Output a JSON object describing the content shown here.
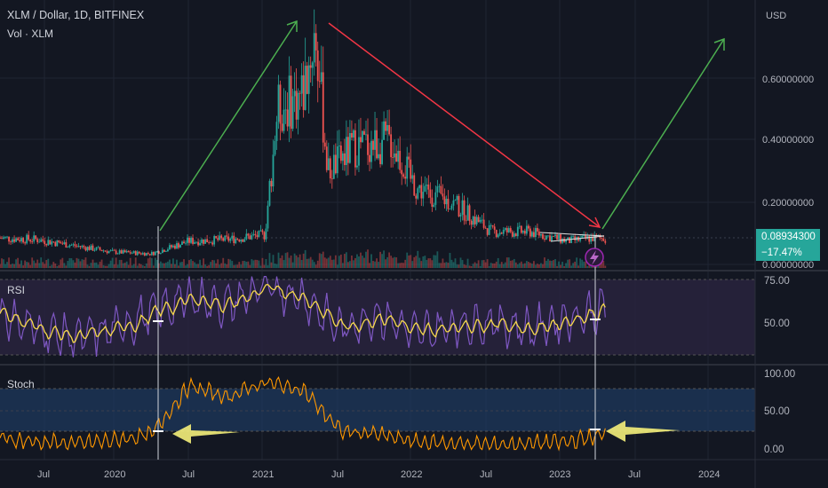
{
  "header": {
    "symbol_line": "XLM / Dollar, 1D, BITFINEX",
    "volume_line": "Vol · XLM"
  },
  "price_axis": {
    "currency": "USD",
    "ticks": [
      "0.60000000",
      "0.40000000",
      "0.20000000",
      "0.00000000"
    ],
    "current_price": "0.08934300",
    "change_pct": "−17.47%"
  },
  "panes": {
    "rsi": {
      "title": "RSI",
      "ticks": [
        "75.00",
        "50.00"
      ]
    },
    "stoch": {
      "title": "Stoch",
      "ticks": [
        "100.00",
        "50.00",
        "0.00"
      ]
    }
  },
  "time_axis": [
    "Jul",
    "2020",
    "Jul",
    "2021",
    "Jul",
    "2022",
    "Jul",
    "2023",
    "Jul",
    "2024"
  ],
  "colors": {
    "background": "#131722",
    "up_candle": "#26a69a",
    "down_candle": "#ef5350",
    "rsi_line": "#7e57c2",
    "rsi_ma": "#f7d94c",
    "stoch_k": "#ff9800",
    "stoch_band": "#1e3a5f",
    "rsi_band": "#2a2440",
    "green_arrow": "#4caf50",
    "red_arrow": "#f23645",
    "yellow_arrow": "#f5f07a"
  },
  "chart_data": [
    {
      "type": "line",
      "title": "XLM / Dollar, 1D, BITFINEX",
      "x": [
        "2019-04",
        "2019-07",
        "2019-10",
        "2020-01",
        "2020-04",
        "2020-07",
        "2020-10",
        "2021-01",
        "2021-02",
        "2021-04",
        "2021-05",
        "2021-06",
        "2021-08",
        "2021-11",
        "2022-01",
        "2022-04",
        "2022-07",
        "2022-10",
        "2023-01",
        "2023-03",
        "2023-04"
      ],
      "series": [
        {
          "values": [
            0.09,
            0.085,
            0.065,
            0.045,
            0.04,
            0.08,
            0.085,
            0.1,
            0.5,
            0.55,
            0.75,
            0.3,
            0.38,
            0.4,
            0.25,
            0.2,
            0.11,
            0.11,
            0.08,
            0.09,
            0.089
          ]
        }
      ],
      "ylim": [
        0,
        0.8
      ],
      "projection": {
        "x": [
          "2023-04",
          "2024-01"
        ],
        "values": [
          0.089,
          0.72
        ]
      }
    },
    {
      "type": "line",
      "title": "RSI",
      "x": [
        "2019-04",
        "2019-07",
        "2019-10",
        "2020-01",
        "2020-04",
        "2020-07",
        "2020-10",
        "2021-01",
        "2021-04",
        "2021-07",
        "2021-10",
        "2022-01",
        "2022-04",
        "2022-07",
        "2022-10",
        "2023-01",
        "2023-04"
      ],
      "series": [
        {
          "values": [
            55,
            45,
            40,
            45,
            55,
            65,
            60,
            72,
            65,
            45,
            55,
            42,
            48,
            50,
            45,
            52,
            58
          ]
        }
      ],
      "ylim": [
        25,
        80
      ]
    },
    {
      "type": "line",
      "title": "Stoch",
      "x": [
        "2019-04",
        "2019-07",
        "2019-10",
        "2020-01",
        "2020-04",
        "2020-07",
        "2020-10",
        "2021-01",
        "2021-04",
        "2021-07",
        "2021-10",
        "2022-01",
        "2022-04",
        "2022-07",
        "2022-10",
        "2023-01",
        "2023-04"
      ],
      "series": [
        {
          "values": [
            15,
            10,
            8,
            12,
            20,
            85,
            70,
            90,
            80,
            25,
            20,
            10,
            8,
            6,
            8,
            10,
            20
          ]
        }
      ],
      "ylim": [
        -10,
        110
      ]
    }
  ]
}
